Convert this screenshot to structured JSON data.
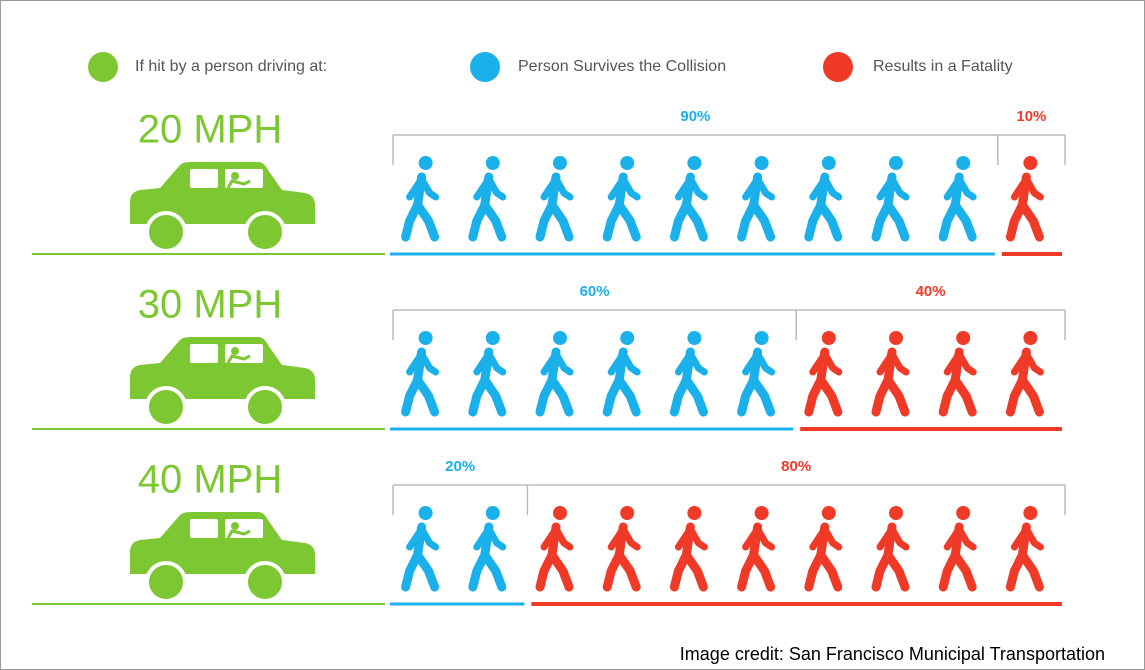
{
  "chart_data": {
    "type": "pictogram",
    "legend_title": "If hit by a person driving at:",
    "legend_color": "#7dc832",
    "categories": [
      "20 MPH",
      "30 MPH",
      "40 MPH"
    ],
    "xlim": [
      0,
      100
    ],
    "series": [
      {
        "name": "Person Survives the Collision",
        "color": "#1ab0ea",
        "values": [
          90,
          60,
          20
        ],
        "value_labels": [
          "90%",
          "60%",
          "20%"
        ]
      },
      {
        "name": "Results in a Fatality",
        "color": "#f03a28",
        "values": [
          10,
          40,
          80
        ],
        "value_labels": [
          "10%",
          "40%",
          "80%"
        ]
      }
    ],
    "source": "Image credit: San Francisco Municipal Transportation"
  }
}
